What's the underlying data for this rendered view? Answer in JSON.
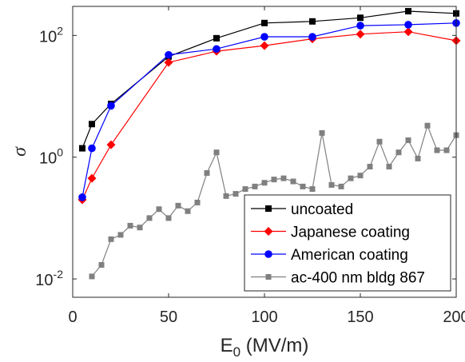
{
  "chart_data": {
    "type": "line",
    "title": "",
    "xlabel": "E",
    "xlabel_sub": "0",
    "xlabel_unit": " (MV/m)",
    "ylabel": "σ",
    "xlim": [
      0,
      200
    ],
    "ylim": [
      0.005,
      300
    ],
    "yscale": "log",
    "grid": false,
    "legend_position": "bottom-right",
    "x_ticks": [
      0,
      50,
      100,
      150,
      200
    ],
    "x_tick_labels": [
      "0",
      "50",
      "100",
      "150",
      "200"
    ],
    "y_ticks": [
      0.01,
      1,
      100
    ],
    "y_tick_labels": [
      {
        "base": "10",
        "exp": "-2"
      },
      {
        "base": "10",
        "exp": "0"
      },
      {
        "base": "10",
        "exp": "2"
      }
    ],
    "series": [
      {
        "name": "uncoated",
        "color": "#000000",
        "marker": "square",
        "x": [
          5,
          10,
          20,
          50,
          75,
          100,
          125,
          150,
          175,
          200
        ],
        "y": [
          1.4,
          3.5,
          7.5,
          45,
          90,
          160,
          170,
          195,
          250,
          230
        ]
      },
      {
        "name": "Japanese coating",
        "color": "#ff0000",
        "marker": "diamond",
        "x": [
          5,
          10,
          20,
          50,
          75,
          100,
          125,
          150,
          175,
          200
        ],
        "y": [
          0.2,
          0.45,
          1.6,
          36,
          55,
          68,
          88,
          105,
          115,
          82
        ]
      },
      {
        "name": "American coating",
        "color": "#0000ff",
        "marker": "circle",
        "x": [
          5,
          10,
          20,
          50,
          75,
          100,
          125,
          150,
          175,
          200
        ],
        "y": [
          0.22,
          1.4,
          7,
          48,
          60,
          95,
          95,
          145,
          150,
          160
        ]
      },
      {
        "name": "ac-400 nm bldg 867",
        "color": "#808080",
        "marker": "square-small",
        "x": [
          10,
          15,
          20,
          25,
          30,
          35,
          40,
          45,
          50,
          55,
          60,
          65,
          70,
          75,
          80,
          85,
          90,
          95,
          100,
          105,
          110,
          115,
          120,
          125,
          130,
          135,
          140,
          145,
          150,
          155,
          160,
          165,
          170,
          175,
          180,
          185,
          190,
          195,
          200
        ],
        "y": [
          0.011,
          0.017,
          0.045,
          0.053,
          0.075,
          0.07,
          0.1,
          0.14,
          0.1,
          0.16,
          0.13,
          0.18,
          0.55,
          1.2,
          0.23,
          0.25,
          0.3,
          0.33,
          0.38,
          0.43,
          0.45,
          0.4,
          0.33,
          0.3,
          2.5,
          0.35,
          0.33,
          0.45,
          0.5,
          0.7,
          1.8,
          0.7,
          1.2,
          1.9,
          0.95,
          3.3,
          1.3,
          1.3,
          2.3
        ]
      }
    ]
  }
}
